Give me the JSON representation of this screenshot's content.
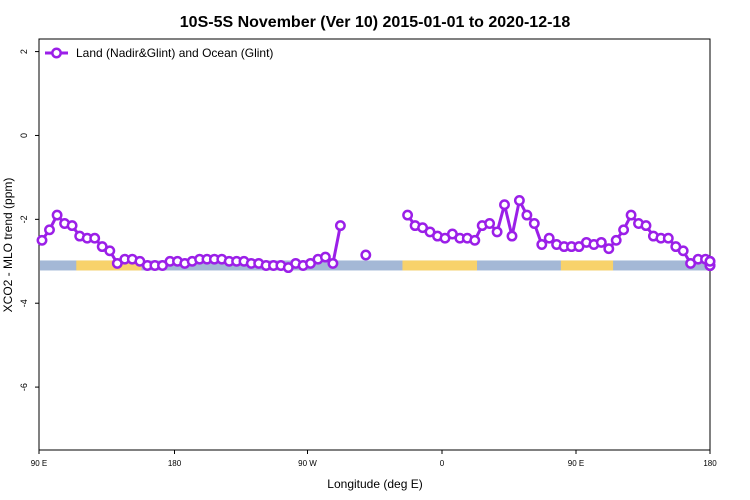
{
  "chart_data": {
    "type": "line",
    "title": "10S-5S November (Ver 10)   2015-01-01 to 2020-12-18",
    "xlabel": "Longitude (deg E)",
    "ylabel": "XCO2 - MLO trend (ppm)",
    "xlim": [
      90,
      450
    ],
    "ylim": [
      -7.5,
      2.3
    ],
    "x_ticks": [
      {
        "value": 90,
        "label": "90 E"
      },
      {
        "value": 180,
        "label": "180"
      },
      {
        "value": 270,
        "label": "90 W"
      },
      {
        "value": 360,
        "label": "0"
      },
      {
        "value": 450,
        "label": "90 E"
      },
      {
        "value": 540,
        "label": "180"
      }
    ],
    "y_ticks": [
      {
        "value": 2,
        "label": "2"
      },
      {
        "value": 0,
        "label": "0"
      },
      {
        "value": -2,
        "label": "-2"
      },
      {
        "value": -4,
        "label": "-4"
      },
      {
        "value": -6,
        "label": "-6"
      }
    ],
    "grid": false,
    "legend": {
      "position": "top-left"
    },
    "series": [
      {
        "name": "Land (Nadir&Glint) and Ocean (Glint)",
        "color": "#9b1fe8",
        "values": [
          [
            92,
            -2.5
          ],
          [
            97,
            -2.25
          ],
          [
            102,
            -1.9
          ],
          [
            107,
            -2.1
          ],
          [
            112,
            -2.15
          ],
          [
            117,
            -2.4
          ],
          [
            122,
            -2.45
          ],
          [
            127,
            -2.45
          ],
          [
            132,
            -2.65
          ],
          [
            137,
            -2.75
          ],
          [
            142,
            -3.05
          ],
          [
            147,
            -2.95
          ],
          [
            152,
            -2.95
          ],
          [
            157,
            -3.0
          ],
          [
            162,
            -3.1
          ],
          [
            167,
            -3.1
          ],
          [
            172,
            -3.1
          ],
          [
            177,
            -3.0
          ],
          [
            182,
            -3.0
          ],
          [
            187,
            -3.05
          ],
          [
            192,
            -3.0
          ],
          [
            197,
            -2.95
          ],
          [
            202,
            -2.95
          ],
          [
            207,
            -2.95
          ],
          [
            212,
            -2.95
          ],
          [
            217,
            -3.0
          ],
          [
            222,
            -3.0
          ],
          [
            227,
            -3.0
          ],
          [
            232,
            -3.05
          ],
          [
            237,
            -3.05
          ],
          [
            242,
            -3.1
          ],
          [
            247,
            -3.1
          ],
          [
            252,
            -3.1
          ],
          [
            257,
            -3.15
          ],
          [
            262,
            -3.05
          ],
          [
            267,
            -3.1
          ],
          [
            272,
            -3.05
          ],
          [
            277,
            -2.95
          ],
          [
            282,
            -2.9
          ],
          [
            287,
            -3.05
          ],
          [
            292,
            -2.15
          ],
          null,
          [
            337,
            -1.9
          ],
          [
            342,
            -2.15
          ],
          [
            347,
            -2.2
          ],
          [
            352,
            -2.3
          ],
          [
            357,
            -2.4
          ],
          [
            362,
            -2.45
          ],
          [
            367,
            -2.35
          ],
          [
            372,
            -2.45
          ],
          [
            377,
            -2.45
          ],
          [
            382,
            -2.5
          ],
          [
            387,
            -2.15
          ],
          [
            392,
            -2.1
          ],
          [
            397,
            -2.3
          ],
          [
            402,
            -1.65
          ],
          [
            407,
            -2.4
          ],
          [
            412,
            -1.55
          ],
          [
            417,
            -1.9
          ],
          [
            422,
            -2.1
          ],
          [
            427,
            -2.6
          ],
          [
            432,
            -2.45
          ],
          [
            437,
            -2.6
          ],
          [
            442,
            -2.65
          ],
          [
            447,
            -2.65
          ],
          [
            452,
            -2.65
          ],
          [
            457,
            -2.55
          ],
          [
            462,
            -2.6
          ],
          [
            467,
            -2.55
          ],
          [
            472,
            -2.7
          ],
          [
            477,
            -2.5
          ],
          [
            482,
            -2.25
          ],
          [
            487,
            -1.9
          ],
          [
            492,
            -2.1
          ],
          [
            497,
            -2.15
          ],
          [
            502,
            -2.4
          ],
          [
            507,
            -2.45
          ],
          [
            512,
            -2.45
          ],
          [
            517,
            -2.65
          ],
          [
            522,
            -2.75
          ],
          [
            527,
            -3.05
          ],
          [
            532,
            -2.95
          ],
          [
            537,
            -2.95
          ],
          [
            542,
            -3.0
          ],
          [
            547,
            -3.1
          ],
          [
            552,
            -3.1
          ],
          [
            557,
            -3.1
          ],
          [
            562,
            -3.0
          ]
        ]
      }
    ],
    "isolated_points": [
      [
        309,
        -2.85
      ]
    ],
    "surface_bar": {
      "y": -3.1,
      "land_color": "#f8d26b",
      "ocean_color": "#a4b8d6",
      "land_segments": [
        [
          110,
          145
        ],
        [
          285,
          325
        ],
        [
          370,
          398
        ],
        [
          480,
          500
        ],
        [
          528,
          540
        ]
      ]
    }
  }
}
